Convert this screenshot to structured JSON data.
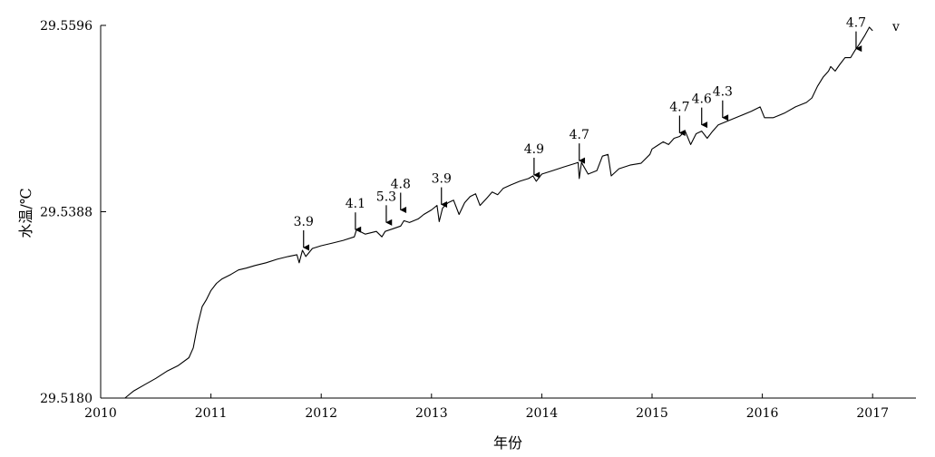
{
  "chart_data": {
    "type": "line",
    "title": "",
    "xlabel": "年份",
    "ylabel": "水温/℃",
    "xlim": [
      2010,
      2017.3
    ],
    "ylim": [
      29.518,
      29.5596
    ],
    "xticks": [
      2010,
      2011,
      2012,
      2013,
      2014,
      2015,
      2016,
      2017
    ],
    "xtick_labels": [
      "2010",
      "2011",
      "2012",
      "2013",
      "2014",
      "2015",
      "2016",
      "2017"
    ],
    "yticks": [
      29.518,
      29.5388,
      29.5596
    ],
    "ytick_labels": [
      "29.5180",
      "29.5388",
      "29.5596"
    ],
    "grid": false,
    "line_color": "#000000",
    "trailing_mark": "v",
    "series": [
      {
        "name": "",
        "points": [
          [
            2010.22,
            29.518
          ],
          [
            2010.24,
            29.5182
          ],
          [
            2010.3,
            29.5188
          ],
          [
            2010.4,
            29.5195
          ],
          [
            2010.5,
            29.5202
          ],
          [
            2010.6,
            29.521
          ],
          [
            2010.7,
            29.5216
          ],
          [
            2010.8,
            29.5225
          ],
          [
            2010.84,
            29.5236
          ],
          [
            2010.88,
            29.5262
          ],
          [
            2010.92,
            29.5282
          ],
          [
            2010.96,
            29.529
          ],
          [
            2011.0,
            29.53
          ],
          [
            2011.05,
            29.5308
          ],
          [
            2011.1,
            29.5313
          ],
          [
            2011.18,
            29.5318
          ],
          [
            2011.25,
            29.5323
          ],
          [
            2011.32,
            29.5325
          ],
          [
            2011.4,
            29.5328
          ],
          [
            2011.5,
            29.5331
          ],
          [
            2011.6,
            29.5335
          ],
          [
            2011.7,
            29.5338
          ],
          [
            2011.78,
            29.534
          ],
          [
            2011.8,
            29.5331
          ],
          [
            2011.83,
            29.5345
          ],
          [
            2011.86,
            29.5338
          ],
          [
            2011.92,
            29.5347
          ],
          [
            2012.0,
            29.535
          ],
          [
            2012.1,
            29.5353
          ],
          [
            2012.2,
            29.5356
          ],
          [
            2012.3,
            29.536
          ],
          [
            2012.32,
            29.5368
          ],
          [
            2012.4,
            29.5363
          ],
          [
            2012.5,
            29.5366
          ],
          [
            2012.55,
            29.536
          ],
          [
            2012.58,
            29.5366
          ],
          [
            2012.65,
            29.5369
          ],
          [
            2012.72,
            29.5372
          ],
          [
            2012.75,
            29.5378
          ],
          [
            2012.8,
            29.5376
          ],
          [
            2012.88,
            29.538
          ],
          [
            2012.93,
            29.5385
          ],
          [
            2013.0,
            29.539
          ],
          [
            2013.05,
            29.5395
          ],
          [
            2013.07,
            29.5377
          ],
          [
            2013.1,
            29.5392
          ],
          [
            2013.15,
            29.5398
          ],
          [
            2013.2,
            29.5401
          ],
          [
            2013.25,
            29.5385
          ],
          [
            2013.3,
            29.5398
          ],
          [
            2013.35,
            29.5405
          ],
          [
            2013.4,
            29.5408
          ],
          [
            2013.44,
            29.5395
          ],
          [
            2013.5,
            29.5403
          ],
          [
            2013.55,
            29.541
          ],
          [
            2013.6,
            29.5407
          ],
          [
            2013.65,
            29.5414
          ],
          [
            2013.72,
            29.5418
          ],
          [
            2013.8,
            29.5422
          ],
          [
            2013.88,
            29.5425
          ],
          [
            2013.92,
            29.5428
          ],
          [
            2013.95,
            29.5422
          ],
          [
            2014.0,
            29.543
          ],
          [
            2014.1,
            29.5434
          ],
          [
            2014.2,
            29.5438
          ],
          [
            2014.28,
            29.5441
          ],
          [
            2014.33,
            29.5443
          ],
          [
            2014.34,
            29.5425
          ],
          [
            2014.36,
            29.5443
          ],
          [
            2014.42,
            29.543
          ],
          [
            2014.5,
            29.5434
          ],
          [
            2014.55,
            29.545
          ],
          [
            2014.6,
            29.5452
          ],
          [
            2014.63,
            29.5428
          ],
          [
            2014.7,
            29.5436
          ],
          [
            2014.8,
            29.544
          ],
          [
            2014.9,
            29.5442
          ],
          [
            2014.98,
            29.5452
          ],
          [
            2015.0,
            29.5458
          ],
          [
            2015.05,
            29.5462
          ],
          [
            2015.1,
            29.5466
          ],
          [
            2015.15,
            29.5463
          ],
          [
            2015.2,
            29.547
          ],
          [
            2015.25,
            29.5472
          ],
          [
            2015.3,
            29.5478
          ],
          [
            2015.35,
            29.5463
          ],
          [
            2015.4,
            29.5475
          ],
          [
            2015.45,
            29.5478
          ],
          [
            2015.5,
            29.547
          ],
          [
            2015.55,
            29.5478
          ],
          [
            2015.6,
            29.5485
          ],
          [
            2015.7,
            29.549
          ],
          [
            2015.8,
            29.5495
          ],
          [
            2015.9,
            29.55
          ],
          [
            2015.98,
            29.5505
          ],
          [
            2016.02,
            29.5493
          ],
          [
            2016.1,
            29.5493
          ],
          [
            2016.2,
            29.5498
          ],
          [
            2016.3,
            29.5505
          ],
          [
            2016.4,
            29.551
          ],
          [
            2016.45,
            29.5515
          ],
          [
            2016.5,
            29.5528
          ],
          [
            2016.55,
            29.5538
          ],
          [
            2016.6,
            29.5545
          ],
          [
            2016.62,
            29.555
          ],
          [
            2016.66,
            29.5545
          ],
          [
            2016.7,
            29.5552
          ],
          [
            2016.75,
            29.556
          ],
          [
            2016.8,
            29.556
          ],
          [
            2016.84,
            29.5568
          ],
          [
            2016.88,
            29.5575
          ],
          [
            2016.93,
            29.5585
          ],
          [
            2016.97,
            29.5594
          ],
          [
            2017.0,
            29.559
          ]
        ]
      }
    ],
    "annotations": [
      {
        "label": "3.9",
        "x": 2011.84,
        "y": 29.5345
      },
      {
        "label": "4.1",
        "x": 2012.31,
        "y": 29.5365
      },
      {
        "label": "5.3",
        "x": 2012.59,
        "y": 29.5373
      },
      {
        "label": "4.8",
        "x": 2012.72,
        "y": 29.5387
      },
      {
        "label": "3.9",
        "x": 2013.09,
        "y": 29.5393
      },
      {
        "label": "4.9",
        "x": 2013.93,
        "y": 29.5426
      },
      {
        "label": "4.7",
        "x": 2014.34,
        "y": 29.5442
      },
      {
        "label": "4.7",
        "x": 2015.25,
        "y": 29.5473
      },
      {
        "label": "4.6",
        "x": 2015.45,
        "y": 29.5482
      },
      {
        "label": "4.3",
        "x": 2015.64,
        "y": 29.549
      },
      {
        "label": "4.7",
        "x": 2016.85,
        "y": 29.5567
      }
    ]
  }
}
